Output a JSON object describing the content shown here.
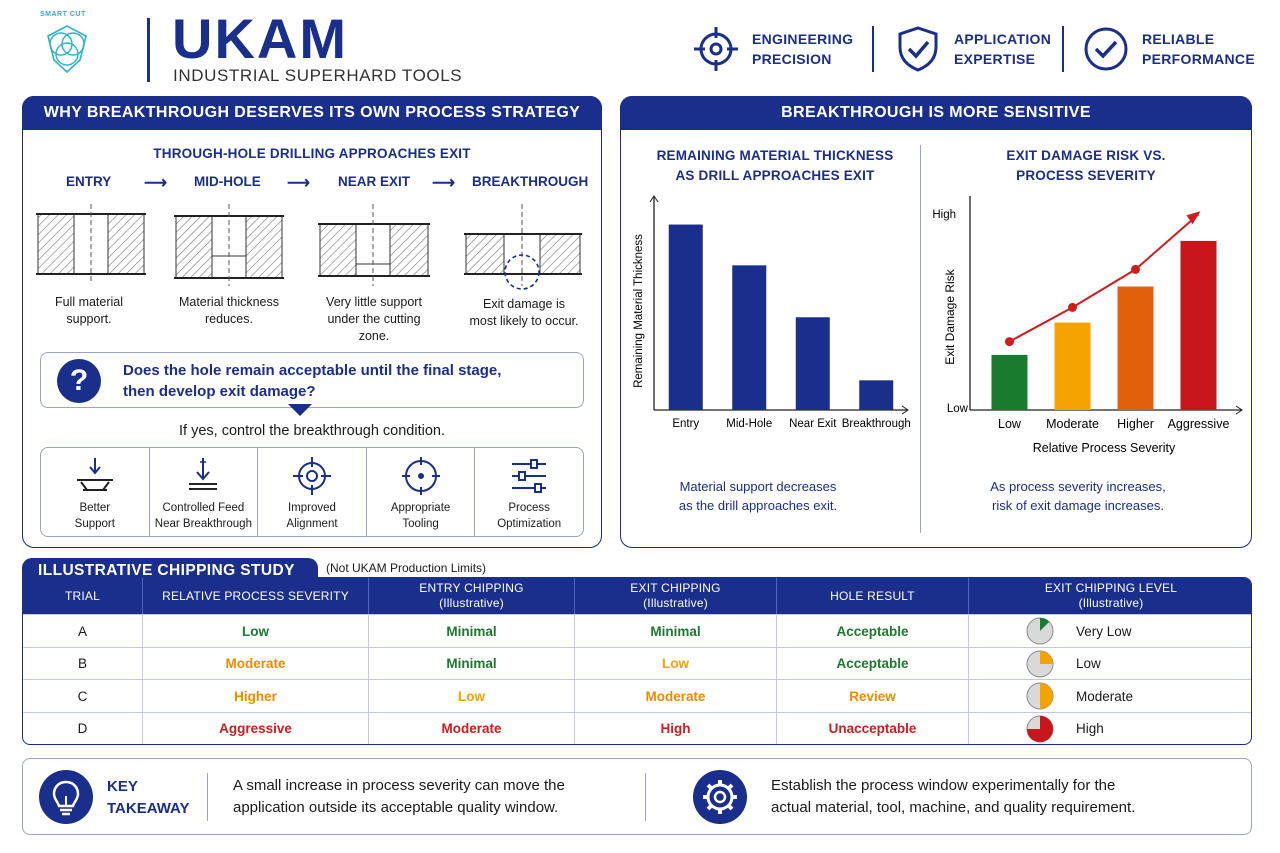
{
  "header": {
    "logo_small": "SMART CUT",
    "brand": "UKAM",
    "tagline": "INDUSTRIAL SUPERHARD TOOLS",
    "features": [
      {
        "line1": "ENGINEERING",
        "line2": "PRECISION",
        "icon": "crosshair-icon"
      },
      {
        "line1": "APPLICATION",
        "line2": "EXPERTISE",
        "icon": "shield-check-icon"
      },
      {
        "line1": "RELIABLE",
        "line2": "PERFORMANCE",
        "icon": "checkmark-circle-icon"
      }
    ]
  },
  "left_panel": {
    "title": "WHY BREAKTHROUGH DESERVES ITS OWN PROCESS STRATEGY",
    "subtitle": "THROUGH-HOLE DRILLING APPROACHES EXIT",
    "stages": [
      "ENTRY",
      "MID-HOLE",
      "NEAR EXIT",
      "BREAKTHROUGH"
    ],
    "captions": [
      [
        "Full material",
        "support."
      ],
      [
        "Material thickness",
        "reduces."
      ],
      [
        "Very little support",
        "under the cutting",
        "zone."
      ],
      [
        "Exit damage is",
        "most likely to occur."
      ]
    ],
    "question_line1": "Does the hole remain acceptable until the final stage,",
    "question_line2": "then develop exit damage?",
    "if_yes": "If yes, control the breakthrough condition.",
    "tools": [
      {
        "line1": "Better",
        "line2": "Support",
        "icon": "support-fixture-icon"
      },
      {
        "line1": "Controlled Feed",
        "line2": "Near Breakthrough",
        "icon": "feed-arrow-icon"
      },
      {
        "line1": "Improved",
        "line2": "Alignment",
        "icon": "alignment-target-icon"
      },
      {
        "line1": "Appropriate",
        "line2": "Tooling",
        "icon": "tooling-target-icon"
      },
      {
        "line1": "Process",
        "line2": "Optimization",
        "icon": "sliders-icon"
      }
    ]
  },
  "right_panel": {
    "title": "BREAKTHROUGH IS MORE SENSITIVE",
    "chart1_title1": "REMAINING MATERIAL THICKNESS",
    "chart1_title2": "AS DRILL APPROACHES EXIT",
    "chart1_caption1": "Material support decreases",
    "chart1_caption2": "as the drill approaches exit.",
    "chart2_title1": "EXIT DAMAGE RISK VS.",
    "chart2_title2": "PROCESS SEVERITY",
    "chart2_caption1": "As process severity increases,",
    "chart2_caption2": "risk of exit damage increases."
  },
  "chart_data": [
    {
      "type": "bar",
      "title": "REMAINING MATERIAL THICKNESS AS DRILL APPROACHES EXIT",
      "ylabel": "Remaining Material Thickness",
      "xlabel": "",
      "categories": [
        "Entry",
        "Mid-Hole",
        "Near Exit",
        "Breakthrough"
      ],
      "values": [
        100,
        78,
        50,
        16
      ],
      "ylim": [
        0,
        110
      ],
      "color": "#1a2e8c",
      "grid": false
    },
    {
      "type": "bar",
      "title": "EXIT DAMAGE RISK VS. PROCESS SEVERITY",
      "ylabel": "Exit Damage Risk",
      "xlabel": "Relative Process Severity",
      "y_tick_labels": [
        "Low",
        "High"
      ],
      "categories": [
        "Low",
        "Moderate",
        "Higher",
        "Aggressive"
      ],
      "values": [
        29,
        46,
        65,
        89
      ],
      "trend_values": [
        36,
        54,
        74,
        103
      ],
      "ylim": [
        0,
        100
      ],
      "colors": [
        "#1a7a2e",
        "#f5a300",
        "#e25f0c",
        "#c8161b"
      ],
      "trend_color": "#d01c1c",
      "grid": false
    }
  ],
  "study": {
    "title": "ILLUSTRATIVE CHIPPING STUDY",
    "note": "(Not UKAM Production Limits)",
    "columns": [
      [
        "TRIAL"
      ],
      [
        "RELATIVE PROCESS SEVERITY"
      ],
      [
        "ENTRY CHIPPING",
        "(Illustrative)"
      ],
      [
        "EXIT CHIPPING",
        "(Illustrative)"
      ],
      [
        "HOLE RESULT"
      ],
      [
        "EXIT CHIPPING LEVEL",
        "(Illustrative)"
      ]
    ],
    "rows": [
      {
        "trial": "A",
        "severity": "Low",
        "entry": "Minimal",
        "exit": "Minimal",
        "result": "Acceptable",
        "level": "Very Low",
        "level_fraction": 0.125,
        "colors": [
          "#1a7a2e",
          "#1a7a2e",
          "#1a7a2e",
          "#1a7a2e"
        ],
        "pie_color": "#1a7a2e"
      },
      {
        "trial": "B",
        "severity": "Moderate",
        "entry": "Minimal",
        "exit": "Low",
        "result": "Acceptable",
        "level": "Low",
        "level_fraction": 0.25,
        "colors": [
          "#f08a00",
          "#1a7a2e",
          "#f5a300",
          "#1a7a2e"
        ],
        "pie_color": "#f5a300"
      },
      {
        "trial": "C",
        "severity": "Higher",
        "entry": "Low",
        "exit": "Moderate",
        "result": "Review",
        "level": "Moderate",
        "level_fraction": 0.5,
        "colors": [
          "#f08a00",
          "#f5a300",
          "#f08a00",
          "#f08a00"
        ],
        "pie_color": "#f5a300"
      },
      {
        "trial": "D",
        "severity": "Aggressive",
        "entry": "Moderate",
        "exit": "High",
        "result": "Unacceptable",
        "level": "High",
        "level_fraction": 0.75,
        "colors": [
          "#d01c1c",
          "#d01c1c",
          "#d01c1c",
          "#d01c1c"
        ],
        "pie_color": "#c8161b"
      }
    ]
  },
  "takeaway": {
    "title1": "KEY",
    "title2": "TAKEAWAY",
    "text1_line1": "A small increase in process severity can move the",
    "text1_line2": "application outside its acceptable quality window.",
    "text2_line1": "Establish the process window experimentally for the",
    "text2_line2": "actual material, tool, machine, and quality requirement."
  }
}
